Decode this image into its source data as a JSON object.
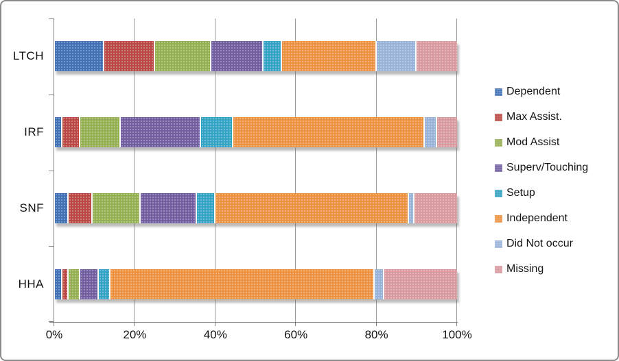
{
  "chart_data": {
    "type": "bar",
    "variant": "horizontal-stacked-100",
    "title": "",
    "categories": [
      "LTCH",
      "IRF",
      "SNF",
      "HHA"
    ],
    "series": [
      {
        "name": "Dependent",
        "color": "#3F6FB5",
        "values": [
          12.5,
          2,
          3.5,
          2
        ]
      },
      {
        "name": "Max Assist.",
        "color": "#BA4743",
        "values": [
          12.5,
          4.5,
          6,
          1.5
        ]
      },
      {
        "name": "Mod Assist",
        "color": "#94AE50",
        "values": [
          14,
          10,
          12,
          3
        ]
      },
      {
        "name": "Superv/Touching",
        "color": "#6F5C9F",
        "values": [
          13,
          20,
          14,
          4.5
        ]
      },
      {
        "name": "Setup",
        "color": "#31A2C2",
        "values": [
          4.5,
          8,
          4.5,
          3
        ]
      },
      {
        "name": "Independent",
        "color": "#EC9140",
        "values": [
          23.5,
          47.5,
          48,
          65.5
        ]
      },
      {
        "name": "Did Not occur",
        "color": "#97B1D8",
        "values": [
          10,
          3,
          1.5,
          2.5
        ]
      },
      {
        "name": "Missing",
        "color": "#D8989E",
        "values": [
          10,
          5,
          10.5,
          18
        ]
      }
    ],
    "x_axis": {
      "tick_labels": [
        "0%",
        "20%",
        "40%",
        "60%",
        "80%",
        "100%"
      ],
      "tick_values": [
        0,
        20,
        40,
        60,
        80,
        100
      ],
      "range": [
        0,
        100
      ]
    },
    "grid": true,
    "legend_position": "right"
  }
}
